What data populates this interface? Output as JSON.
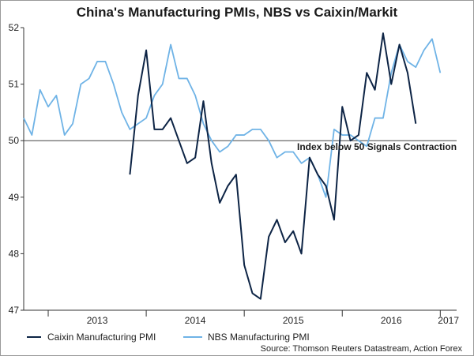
{
  "chart_data": {
    "type": "line",
    "title": "China's Manufacturing PMIs, NBS vs Caixin/Markit",
    "ylim": [
      47,
      52
    ],
    "yticks": [
      47,
      48,
      49,
      50,
      51,
      52
    ],
    "x_start": "2012-10",
    "x_end": "2017-03",
    "xtick_labels": [
      "2013",
      "2014",
      "2015",
      "2016",
      "2017"
    ],
    "reference_line": 50,
    "annotation": "Index below 50 Signals Contraction",
    "series": [
      {
        "name": "Caixin Manufacturing PMI",
        "color": "#0d2445",
        "start": "2013-11",
        "values": [
          49.4,
          50.8,
          51.6,
          50.2,
          50.2,
          50.4,
          50.0,
          49.6,
          49.7,
          50.7,
          49.6,
          48.9,
          49.2,
          49.4,
          47.8,
          47.3,
          47.2,
          48.3,
          48.6,
          48.2,
          48.4,
          48.0,
          49.7,
          49.4,
          49.2,
          48.6,
          50.6,
          50.0,
          50.1,
          51.2,
          50.9,
          51.9,
          51.0,
          51.7,
          51.2,
          50.3
        ]
      },
      {
        "name": "NBS Manufacturing PMI",
        "color": "#6fb3e6",
        "start": "2012-10",
        "values": [
          50.4,
          50.1,
          50.9,
          50.6,
          50.8,
          50.1,
          50.3,
          51.0,
          51.1,
          51.4,
          51.4,
          51.0,
          50.5,
          50.2,
          50.3,
          50.4,
          50.8,
          51.0,
          51.7,
          51.1,
          51.1,
          50.8,
          50.3,
          50.0,
          49.8,
          49.9,
          50.1,
          50.1,
          50.2,
          50.2,
          50.0,
          49.7,
          49.8,
          49.8,
          49.6,
          49.7,
          49.4,
          49.0,
          50.2,
          50.1,
          50.1,
          50.0,
          49.9,
          50.4,
          50.4,
          51.2,
          51.7,
          51.4,
          51.3,
          51.6,
          51.8,
          51.2
        ]
      }
    ]
  },
  "source": "Source: Thomson Reuters Datastream, Action Forex"
}
